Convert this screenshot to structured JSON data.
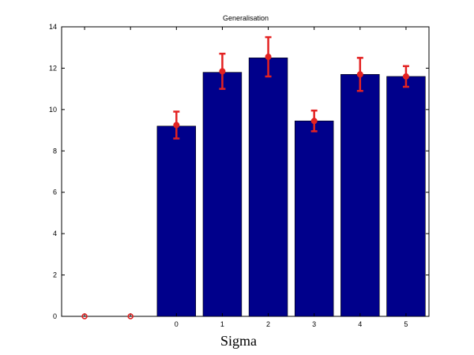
{
  "chart_data": {
    "type": "bar",
    "title": "Generalisation",
    "xlabel": "Sigma",
    "ylabel": "",
    "ylim": [
      0,
      14
    ],
    "yticks": [
      0,
      2,
      4,
      6,
      8,
      10,
      12,
      14
    ],
    "categories": [
      "",
      "",
      "0",
      "1",
      "2",
      "3",
      "4",
      "5"
    ],
    "values": [
      0,
      0,
      9.2,
      11.8,
      12.5,
      9.45,
      11.7,
      11.6
    ],
    "means": [
      0,
      0,
      9.25,
      11.85,
      12.55,
      9.45,
      11.7,
      11.6
    ],
    "errors": [
      0,
      0,
      0.65,
      0.85,
      0.95,
      0.5,
      0.8,
      0.5
    ],
    "grid": false,
    "colors": {
      "bar": "#00008b",
      "bar_edge": "#000000",
      "error": "#e32222"
    }
  }
}
